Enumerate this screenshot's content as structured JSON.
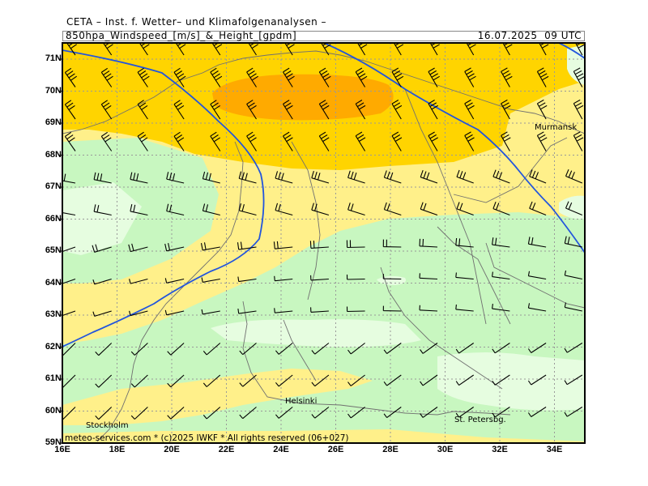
{
  "header": {
    "title": "CETA – Inst. f. Wetter– und Klimafolgenanalysen –",
    "subtitle": "850hpa_Windspeed_[m/s]_&_Height_[gpdm]",
    "datetime": "16.07.2025  09 UTC"
  },
  "map": {
    "lat_labels": [
      "71N",
      "70N",
      "69N",
      "68N",
      "67N",
      "66N",
      "65N",
      "64N",
      "63N",
      "62N",
      "61N",
      "60N",
      "59N"
    ],
    "lon_labels": [
      "16E",
      "18E",
      "20E",
      "22E",
      "24E",
      "26E",
      "28E",
      "30E",
      "32E",
      "34E"
    ],
    "places": {
      "murmansk": "Murmansk",
      "helsinki": "Helsinki",
      "stockholm": "Stockholm",
      "st_petersburg": "St. Petersbg."
    },
    "copyright": "meteo-services.com * (c)2025 IWKF * All rights reserved (06+027)",
    "colors": {
      "wind_very_weak": "#e6fde0",
      "wind_weak": "#c8f7c0",
      "wind_moderate": "#fff08a",
      "wind_fresh": "#ffd400",
      "wind_strong": "#ffaa00",
      "contour": "#2255dd",
      "coast": "#707070",
      "grid": "#999999"
    }
  }
}
